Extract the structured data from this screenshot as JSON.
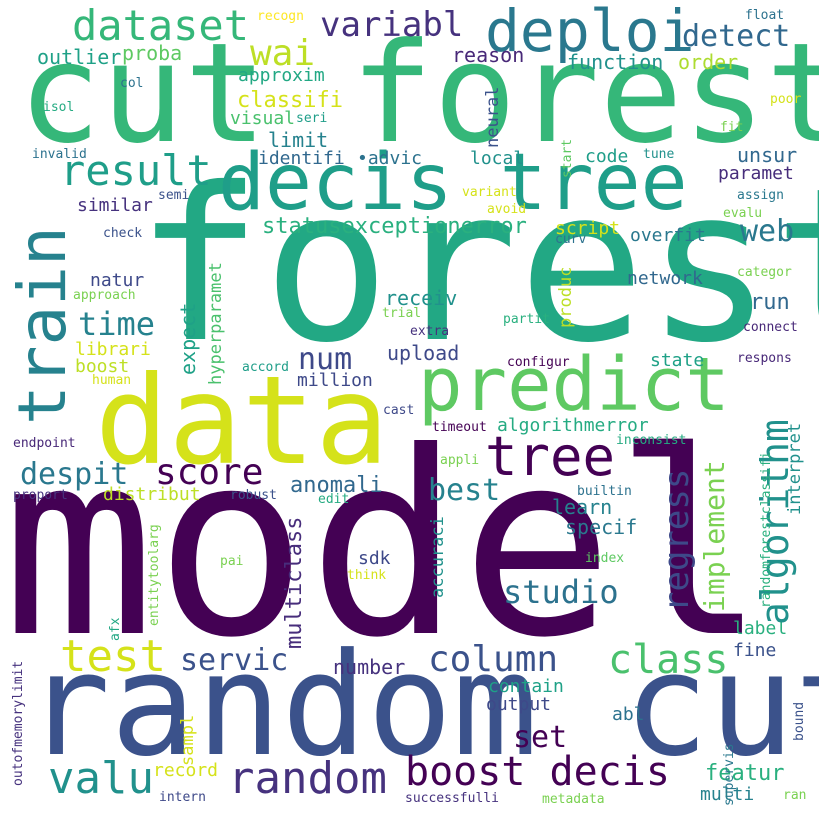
{
  "words": [
    {
      "text": "forest",
      "color": "#22a884"
    },
    {
      "text": "model",
      "color": "#440154"
    },
    {
      "text": "cut forest",
      "color": "#35b779"
    },
    {
      "text": "random cut",
      "color": "#3b528b"
    },
    {
      "text": "data",
      "color": "#d5e21a"
    },
    {
      "text": "decis tree",
      "color": "#1f9e89"
    },
    {
      "text": "predict",
      "color": "#5ec962"
    },
    {
      "text": "train",
      "color": "#26828e"
    },
    {
      "text": "deploi",
      "color": "#2a788e"
    },
    {
      "text": "dataset",
      "color": "#35b779"
    },
    {
      "text": "result",
      "color": "#1f9e89"
    },
    {
      "text": "tree",
      "color": "#440154"
    },
    {
      "text": "algorithm",
      "color": "#21918c"
    },
    {
      "text": "boost decis",
      "color": "#440154"
    },
    {
      "text": "random",
      "color": "#46327e"
    },
    {
      "text": "valu",
      "color": "#21918c"
    },
    {
      "text": "test",
      "color": "#d5e21a"
    },
    {
      "text": "class",
      "color": "#4ac16d"
    },
    {
      "text": "column",
      "color": "#3b528b"
    },
    {
      "text": "score",
      "color": "#440154"
    },
    {
      "text": "wai",
      "color": "#bddf26"
    },
    {
      "text": "variabl",
      "color": "#46327e"
    },
    {
      "text": "detect",
      "color": "#31688e"
    },
    {
      "text": "regress",
      "color": "#3e4989"
    },
    {
      "text": "implement",
      "color": "#7ad151"
    },
    {
      "text": "studio",
      "color": "#2c728e"
    },
    {
      "text": "time",
      "color": "#26828e"
    },
    {
      "text": "despit",
      "color": "#2a788e"
    },
    {
      "text": "best",
      "color": "#26828e"
    },
    {
      "text": "num",
      "color": "#3e4989"
    },
    {
      "text": "servic",
      "color": "#3b528b"
    },
    {
      "text": "web",
      "color": "#2a788e"
    },
    {
      "text": "statusexceptionerror",
      "color": "#2ab07f"
    },
    {
      "text": "classifi",
      "color": "#d5e21a"
    },
    {
      "text": "anomali",
      "color": "#31688e"
    },
    {
      "text": "multiclass",
      "color": "#472d7b"
    },
    {
      "text": "set",
      "color": "#440154"
    },
    {
      "text": "featur",
      "color": "#2ab07f"
    },
    {
      "text": "outlier",
      "color": "#1fa187"
    },
    {
      "text": "proba",
      "color": "#5ec962"
    },
    {
      "text": "reason",
      "color": "#482878"
    },
    {
      "text": "function",
      "color": "#21918c"
    },
    {
      "text": "order",
      "color": "#addc30"
    },
    {
      "text": "approxim",
      "color": "#22a884"
    },
    {
      "text": "visual",
      "color": "#4ac16d"
    },
    {
      "text": "limit",
      "color": "#26828e"
    },
    {
      "text": "identifi",
      "color": "#31688e"
    },
    {
      "text": "•advic",
      "color": "#2c728e"
    },
    {
      "text": "local",
      "color": "#21918c"
    },
    {
      "text": "code",
      "color": "#1f9e89"
    },
    {
      "text": "unsur",
      "color": "#31688e"
    },
    {
      "text": "paramet",
      "color": "#472d7b"
    },
    {
      "text": "similar",
      "color": "#46327e"
    },
    {
      "text": "script",
      "color": "#d5e21a"
    },
    {
      "text": "overfit",
      "color": "#2a788e"
    },
    {
      "text": "natur",
      "color": "#3e4989"
    },
    {
      "text": "receiv",
      "color": "#21918c"
    },
    {
      "text": "network",
      "color": "#31688e"
    },
    {
      "text": "run",
      "color": "#31688e"
    },
    {
      "text": "upload",
      "color": "#3e4989"
    },
    {
      "text": "librari",
      "color": "#d5e21a"
    },
    {
      "text": "boost",
      "color": "#bddf26"
    },
    {
      "text": "state",
      "color": "#1fa187"
    },
    {
      "text": "million",
      "color": "#3e4989"
    },
    {
      "text": "algorithmerror",
      "color": "#25ab82"
    },
    {
      "text": "distribut",
      "color": "#bddf26"
    },
    {
      "text": "learn",
      "color": "#26828e"
    },
    {
      "text": "specif",
      "color": "#2a788e"
    },
    {
      "text": "sdk",
      "color": "#3e4989"
    },
    {
      "text": "number",
      "color": "#46327e"
    },
    {
      "text": "contain",
      "color": "#1fa187"
    },
    {
      "text": "output",
      "color": "#3e4989"
    },
    {
      "text": "label",
      "color": "#2ab07f"
    },
    {
      "text": "fine",
      "color": "#3b528b"
    },
    {
      "text": "abl",
      "color": "#2c728e"
    },
    {
      "text": "multi",
      "color": "#26828e"
    },
    {
      "text": "record",
      "color": "#d5e21a"
    },
    {
      "text": "recogn",
      "color": "#fde725"
    },
    {
      "text": "float",
      "color": "#2c728e"
    },
    {
      "text": "col",
      "color": "#2c728e"
    },
    {
      "text": "isol",
      "color": "#25ab82"
    },
    {
      "text": "invalid",
      "color": "#2c728e"
    },
    {
      "text": "seri",
      "color": "#1f9e89"
    },
    {
      "text": "poor",
      "color": "#d5e21a"
    },
    {
      "text": "fit",
      "color": "#7ad151"
    },
    {
      "text": "tune",
      "color": "#21918c"
    },
    {
      "text": "semi",
      "color": "#3b528b"
    },
    {
      "text": "variant",
      "color": "#d5e21a"
    },
    {
      "text": "avoid",
      "color": "#d5e21a"
    },
    {
      "text": "assign",
      "color": "#2a788e"
    },
    {
      "text": "evalu",
      "color": "#7ad151"
    },
    {
      "text": "check",
      "color": "#3b528b"
    },
    {
      "text": "curv",
      "color": "#2c728e"
    },
    {
      "text": "approach",
      "color": "#7ad151"
    },
    {
      "text": "trial",
      "color": "#7ad151"
    },
    {
      "text": "partit",
      "color": "#2ab07f"
    },
    {
      "text": "categor",
      "color": "#7ad151"
    },
    {
      "text": "connect",
      "color": "#482878"
    },
    {
      "text": "extra",
      "color": "#46327e"
    },
    {
      "text": "human",
      "color": "#d5e21a"
    },
    {
      "text": "accord",
      "color": "#1f9e89"
    },
    {
      "text": "configur",
      "color": "#440154"
    },
    {
      "text": "respons",
      "color": "#482878"
    },
    {
      "text": "cast",
      "color": "#3e4989"
    },
    {
      "text": "timeout",
      "color": "#440154"
    },
    {
      "text": "inconsist",
      "color": "#25ab82"
    },
    {
      "text": "endpoint",
      "color": "#482878"
    },
    {
      "text": "appli",
      "color": "#7ad151"
    },
    {
      "text": "proport",
      "color": "#46327e"
    },
    {
      "text": "robust",
      "color": "#3b528b"
    },
    {
      "text": "edit",
      "color": "#25ab82"
    },
    {
      "text": "builtin",
      "color": "#2c728e"
    },
    {
      "text": "pai",
      "color": "#7ad151"
    },
    {
      "text": "think",
      "color": "#d5e21a"
    },
    {
      "text": "index",
      "color": "#5ec962"
    },
    {
      "text": "ran",
      "color": "#7ad151"
    },
    {
      "text": "intern",
      "color": "#3e4989"
    },
    {
      "text": "successfulli",
      "color": "#46327e"
    },
    {
      "text": "metadata",
      "color": "#7ad151"
    },
    {
      "text": "afx",
      "color": "#22a884"
    },
    {
      "text": "outofmemorylimit",
      "color": "#46327e"
    },
    {
      "text": "start",
      "color": "#5ec962"
    },
    {
      "text": "neural",
      "color": "#3b528b"
    },
    {
      "text": "hyperparamet",
      "color": "#4ac16d"
    },
    {
      "text": "expect",
      "color": "#1fa187"
    },
    {
      "text": "produc",
      "color": "#bddf26"
    },
    {
      "text": "accuraci",
      "color": "#21918c"
    },
    {
      "text": "entitytoolarg",
      "color": "#7ad151"
    },
    {
      "text": "sampl",
      "color": "#d5e21a"
    },
    {
      "text": "interpret",
      "color": "#21918c"
    },
    {
      "text": "randomforestclassifi",
      "color": "#2ab07f"
    },
    {
      "text": "supervis",
      "color": "#2a788e"
    },
    {
      "text": "bound",
      "color": "#3b528b"
    }
  ]
}
